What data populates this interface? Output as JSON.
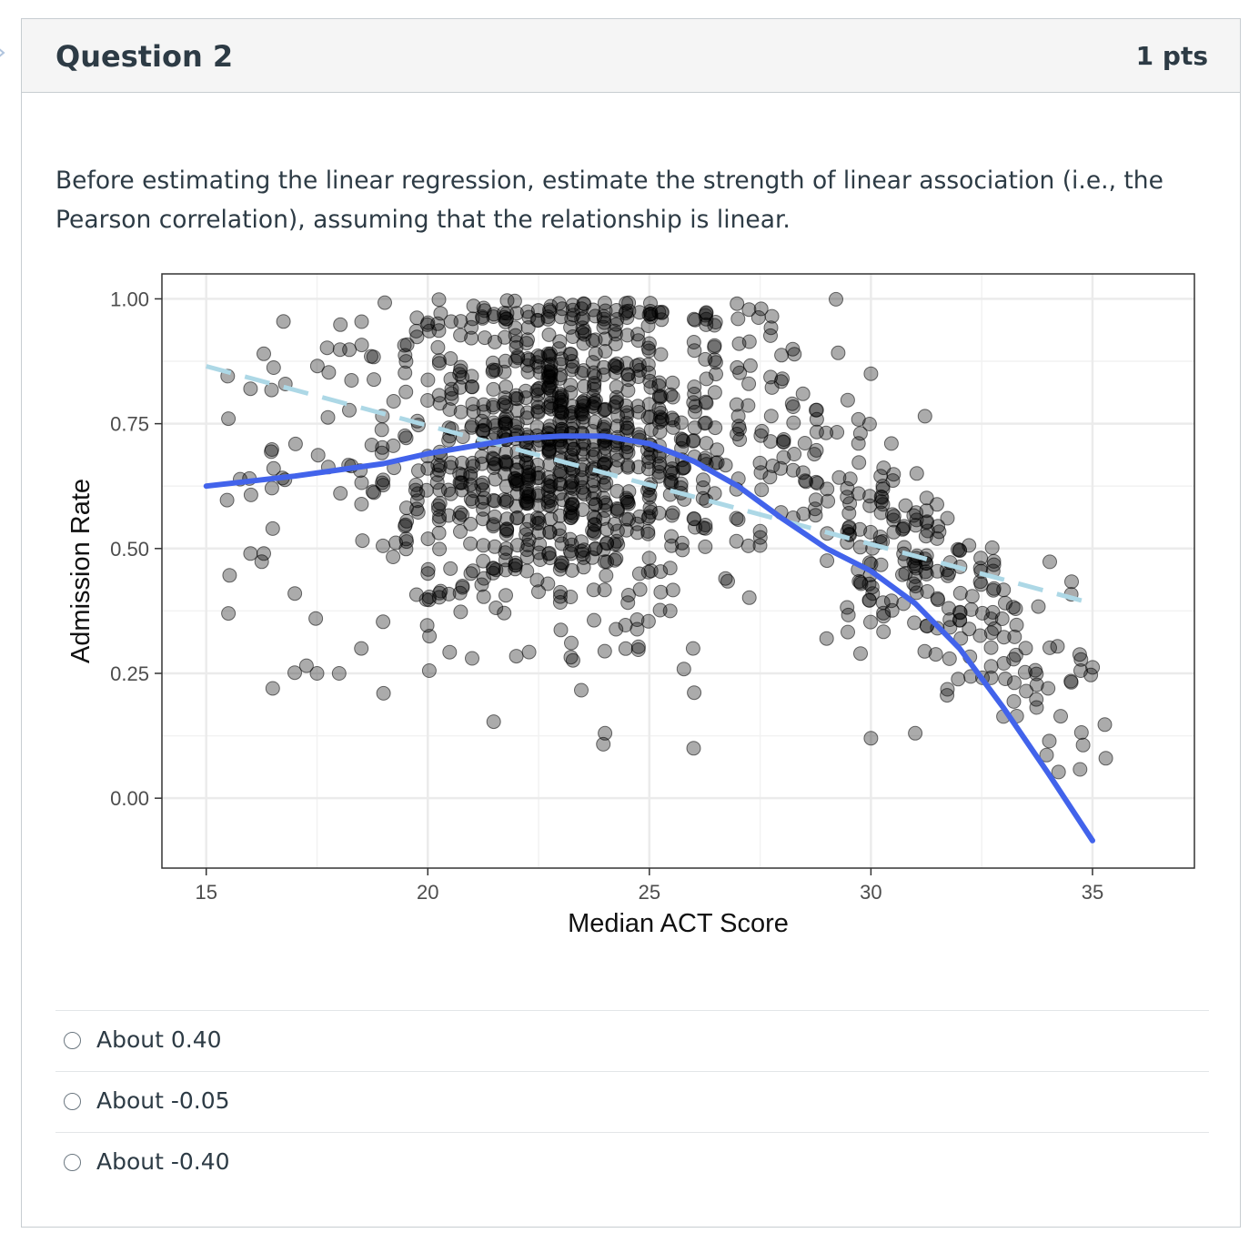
{
  "question": {
    "title": "Question 2",
    "points": "1 pts",
    "prompt": "Before estimating the linear regression, estimate the strength of linear association (i.e., the Pearson correlation), assuming that the relationship is linear."
  },
  "colors": {
    "points": "#000000",
    "loess_line": "#4263eb",
    "linear_fit_line": "#add8e6",
    "panel_border": "#333333",
    "grid": "#ebebeb"
  },
  "chart_data": {
    "type": "scatter",
    "xlabel": "Median ACT Score",
    "ylabel": "Admission Rate",
    "xlim": [
      14,
      37.3
    ],
    "ylim": [
      -0.14,
      1.05
    ],
    "x_ticks": [
      15,
      20,
      25,
      30,
      35
    ],
    "x_tick_labels": [
      "15",
      "20",
      "25",
      "30",
      "35"
    ],
    "y_ticks": [
      0,
      0.25,
      0.5,
      0.75,
      1.0
    ],
    "y_tick_labels": [
      "0.00",
      "0.25",
      "0.50",
      "0.75",
      "1.00"
    ],
    "grid": true,
    "point_style": "semi-transparent grey circles",
    "point_count_approx": 1300,
    "linear_fit": {
      "style": "dashed",
      "color": "#add8e6",
      "x": [
        15,
        35
      ],
      "y": [
        0.865,
        0.39
      ]
    },
    "smooth_fit": {
      "style": "solid",
      "color": "#4263eb",
      "x": [
        15,
        17,
        19,
        20,
        21,
        22,
        23,
        24,
        25,
        26,
        27,
        28,
        29,
        30,
        31,
        32,
        33,
        34,
        35
      ],
      "y": [
        0.625,
        0.645,
        0.67,
        0.69,
        0.705,
        0.72,
        0.725,
        0.725,
        0.71,
        0.675,
        0.625,
        0.56,
        0.5,
        0.455,
        0.39,
        0.3,
        0.18,
        0.05,
        -0.085
      ]
    },
    "sample_points": [
      {
        "x": 15.5,
        "y": 0.76
      },
      {
        "x": 15.5,
        "y": 0.37
      },
      {
        "x": 16.0,
        "y": 0.82
      },
      {
        "x": 16.0,
        "y": 0.49
      },
      {
        "x": 16.3,
        "y": 0.89
      },
      {
        "x": 16.3,
        "y": 0.49
      },
      {
        "x": 16.5,
        "y": 0.22
      },
      {
        "x": 16.5,
        "y": 0.54
      },
      {
        "x": 17.0,
        "y": 0.41
      },
      {
        "x": 17.5,
        "y": 0.25
      },
      {
        "x": 18.0,
        "y": 0.25
      },
      {
        "x": 18.5,
        "y": 0.3
      },
      {
        "x": 19.0,
        "y": 0.21
      },
      {
        "x": 20.0,
        "y": 0.45
      },
      {
        "x": 21.0,
        "y": 0.28
      },
      {
        "x": 24.0,
        "y": 0.13
      },
      {
        "x": 26.0,
        "y": 0.1
      },
      {
        "x": 27.0,
        "y": 0.96
      },
      {
        "x": 28.0,
        "y": 0.84
      },
      {
        "x": 30.0,
        "y": 0.85
      },
      {
        "x": 30.0,
        "y": 0.12
      },
      {
        "x": 31.0,
        "y": 0.13
      },
      {
        "x": 33.0,
        "y": 0.27
      },
      {
        "x": 34.0,
        "y": 0.22
      },
      {
        "x": 35.3,
        "y": 0.08
      }
    ]
  },
  "answers": [
    {
      "label": "About 0.40"
    },
    {
      "label": "About -0.05"
    },
    {
      "label": "About -0.40"
    }
  ]
}
